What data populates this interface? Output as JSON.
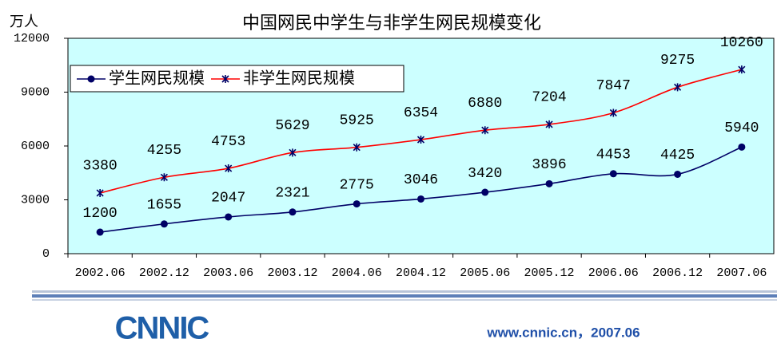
{
  "chart_data": {
    "type": "line",
    "title": "中国网民中学生与非学生网民规模变化",
    "y_label": "万人",
    "categories": [
      "2002.06",
      "2002.12",
      "2003.06",
      "2003.12",
      "2004.06",
      "2004.12",
      "2005.06",
      "2005.12",
      "2006.06",
      "2006.12",
      "2007.06"
    ],
    "series": [
      {
        "name": "学生网民规模",
        "color": "#000066",
        "marker": "circle",
        "marker_color": "#000066",
        "values": [
          1200,
          1655,
          2047,
          2321,
          2775,
          3046,
          3420,
          3896,
          4453,
          4425,
          5940
        ]
      },
      {
        "name": "非学生网民规模",
        "color": "#ff0000",
        "marker": "star",
        "marker_color": "#000066",
        "values": [
          3380,
          4255,
          4753,
          5629,
          5925,
          6354,
          6880,
          7204,
          7847,
          9275,
          10260
        ]
      }
    ],
    "ylim": [
      0,
      12000
    ],
    "yticks": [
      0,
      3000,
      6000,
      9000,
      12000
    ],
    "grid": false,
    "legend": "top-left",
    "plot_background": "#ccffff",
    "smooth": true
  },
  "footer": {
    "logo": "CNNIC",
    "text": "www.cnnic.cn，2007.06"
  }
}
